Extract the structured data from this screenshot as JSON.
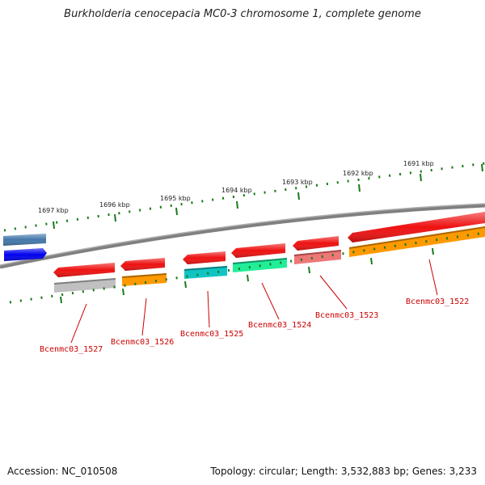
{
  "title": "Burkholderia cenocepacia MC0-3 chromosome 1, complete genome",
  "footer": {
    "accession": "Accession: NC_010508",
    "topology": "Topology: circular; Length: 3,532,883 bp; Genes: 3,233"
  },
  "scale_labels": [
    "1697 kbp",
    "1696 kbp",
    "1695 kbp",
    "1694 kbp",
    "1693 kbp",
    "1692 kbp",
    "1691 kbp"
  ],
  "gene_labels": [
    "Bcenmc03_1527",
    "Bcenmc03_1526",
    "Bcenmc03_1525",
    "Bcenmc03_1524",
    "Bcenmc03_1523",
    "Bcenmc03_1522"
  ],
  "colors": {
    "backbone": "#808080",
    "ticks": "#1a7a1a",
    "label_red": "#cc0000",
    "red": "#ff0000",
    "orange": "#ff9900",
    "cyan": "#11c4c4",
    "mint": "#22ee99",
    "pink": "#ee7777",
    "gray": "#c0c0c0",
    "steelblue": "#4477aa",
    "blue": "#0000ee"
  }
}
